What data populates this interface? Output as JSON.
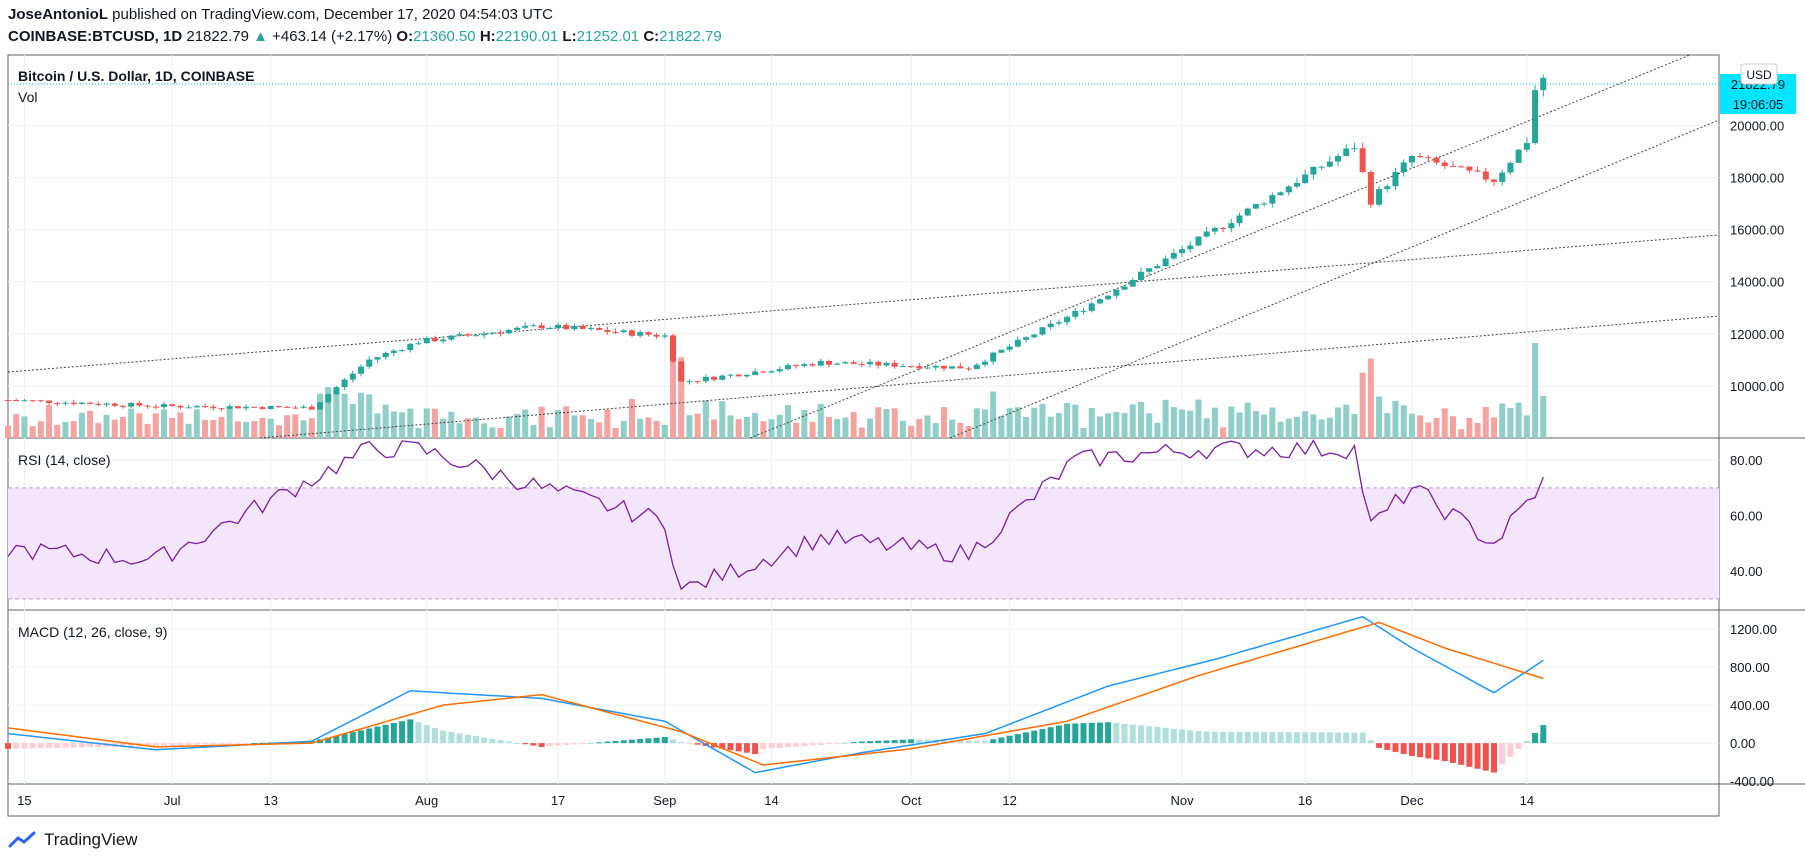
{
  "header": {
    "author": "JoseAntonioL",
    "published_text": "published on TradingView.com, December 17, 2020 04:54:03 UTC",
    "symbol": "COINBASE:BTCUSD, 1D",
    "last": "21822.79",
    "change": "+463.14 (+2.17%)",
    "open_label": "O:",
    "open": "21360.50",
    "high_label": "H:",
    "high": "22190.01",
    "low_label": "L:",
    "low": "21252.01",
    "close_label": "C:",
    "close": "21822.79"
  },
  "price_pane": {
    "legend": "Bitcoin / U.S. Dollar, 1D, COINBASE",
    "vol_label": "Vol",
    "currency": "USD",
    "price_tag": "21822.79",
    "countdown": "19:06:05"
  },
  "rsi_pane": {
    "legend": "RSI (14, close)"
  },
  "macd_pane": {
    "legend": "MACD (12, 26, close, 9)"
  },
  "footer": {
    "brand": "TradingView"
  },
  "colors": {
    "up": "#26a69a",
    "down": "#ef5350",
    "vol_up": "#8fcfc8",
    "vol_down": "#f4a3a3",
    "rsi": "#7b1fa2",
    "rsi_band": "#f3e5fb",
    "macd": "#2196f3",
    "signal": "#ff6d00",
    "hist_up_strong": "#26a69a",
    "hist_up_weak": "#b2dfdb",
    "hist_down_strong": "#ef5350",
    "hist_down_weak": "#ffcdd2",
    "tag": "#00e5ff"
  },
  "chart_data": [
    {
      "type": "candlestick",
      "title": "Bitcoin / U.S. Dollar, 1D, COINBASE",
      "x_ticks": [
        "15",
        "Jul",
        "13",
        "Aug",
        "17",
        "Sep",
        "14",
        "Oct",
        "12",
        "Nov",
        "16",
        "Dec",
        "14"
      ],
      "y_ticks": [
        "10000.00",
        "12000.00",
        "14000.00",
        "16000.00",
        "18000.00",
        "20000.00"
      ],
      "ylim": [
        8000,
        22700
      ],
      "series": [
        {
          "name": "close",
          "approx_daily_close_keypoints": [
            [
              "2020-06-13",
              9460
            ],
            [
              "2020-07-01",
              9230
            ],
            [
              "2020-07-20",
              9160
            ],
            [
              "2020-07-27",
              11000
            ],
            [
              "2020-08-02",
              11700
            ],
            [
              "2020-08-17",
              12300
            ],
            [
              "2020-09-01",
              11920
            ],
            [
              "2020-09-03",
              10150
            ],
            [
              "2020-09-20",
              10900
            ],
            [
              "2020-10-08",
              10700
            ],
            [
              "2020-10-21",
              12800
            ],
            [
              "2020-11-05",
              15600
            ],
            [
              "2020-11-24",
              19200
            ],
            [
              "2020-11-26",
              17100
            ],
            [
              "2020-12-01",
              18800
            ],
            [
              "2020-12-11",
              17900
            ],
            [
              "2020-12-15",
              19400
            ],
            [
              "2020-12-16",
              21360
            ],
            [
              "2020-12-17",
              21822.79
            ]
          ]
        }
      ],
      "volume_label": "Vol"
    },
    {
      "type": "line",
      "title": "RSI (14, close)",
      "y_ticks": [
        "40.00",
        "60.00",
        "80.00"
      ],
      "ylim": [
        26,
        88
      ],
      "band": [
        30,
        70
      ],
      "series": [
        {
          "name": "RSI",
          "keypoints": [
            [
              "2020-06-13",
              48
            ],
            [
              "2020-07-01",
              44
            ],
            [
              "2020-07-27",
              84
            ],
            [
              "2020-08-02",
              84
            ],
            [
              "2020-08-17",
              70
            ],
            [
              "2020-09-01",
              58
            ],
            [
              "2020-09-03",
              33
            ],
            [
              "2020-09-20",
              52
            ],
            [
              "2020-10-08",
              46
            ],
            [
              "2020-10-21",
              80
            ],
            [
              "2020-11-05",
              84
            ],
            [
              "2020-11-24",
              84
            ],
            [
              "2020-11-26",
              56
            ],
            [
              "2020-12-01",
              70
            ],
            [
              "2020-12-11",
              50
            ],
            [
              "2020-12-17",
              72
            ]
          ]
        }
      ]
    },
    {
      "type": "line+histogram",
      "title": "MACD (12, 26, close, 9)",
      "y_ticks": [
        "-400.00",
        "0.00",
        "400.00",
        "800.00",
        "1200.00"
      ],
      "ylim": [
        -430,
        1400
      ],
      "series": [
        {
          "name": "MACD",
          "keypoints": [
            [
              "2020-06-13",
              100
            ],
            [
              "2020-07-01",
              -70
            ],
            [
              "2020-07-20",
              20
            ],
            [
              "2020-08-01",
              550
            ],
            [
              "2020-08-17",
              470
            ],
            [
              "2020-09-01",
              230
            ],
            [
              "2020-09-12",
              -310
            ],
            [
              "2020-09-25",
              -100
            ],
            [
              "2020-10-10",
              100
            ],
            [
              "2020-10-25",
              600
            ],
            [
              "2020-11-07",
              880
            ],
            [
              "2020-11-25",
              1330
            ],
            [
              "2020-12-01",
              1000
            ],
            [
              "2020-12-11",
              530
            ],
            [
              "2020-12-17",
              870
            ]
          ]
        },
        {
          "name": "Signal",
          "keypoints": [
            [
              "2020-06-13",
              160
            ],
            [
              "2020-07-01",
              -40
            ],
            [
              "2020-07-20",
              0
            ],
            [
              "2020-08-05",
              400
            ],
            [
              "2020-08-17",
              510
            ],
            [
              "2020-09-03",
              120
            ],
            [
              "2020-09-13",
              -230
            ],
            [
              "2020-10-01",
              -60
            ],
            [
              "2020-10-20",
              230
            ],
            [
              "2020-11-05",
              710
            ],
            [
              "2020-11-27",
              1270
            ],
            [
              "2020-12-05",
              1000
            ],
            [
              "2020-12-17",
              680
            ]
          ]
        }
      ]
    }
  ]
}
